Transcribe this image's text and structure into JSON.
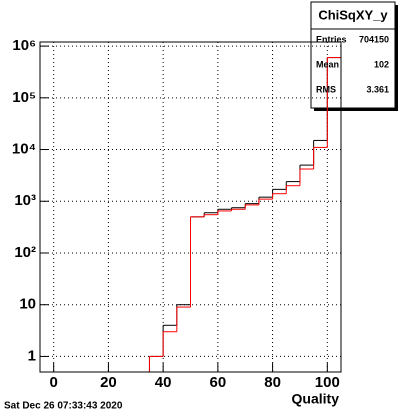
{
  "chart_data": {
    "type": "histogram",
    "x_label": "Quality",
    "footer": "Sat Dec 26 07:33:43 2020",
    "bins": [
      -5,
      0,
      5,
      10,
      15,
      20,
      25,
      30,
      35,
      40,
      45,
      50,
      55,
      60,
      65,
      70,
      75,
      80,
      85,
      90,
      95,
      100,
      105
    ],
    "series": [
      {
        "color": "#000000",
        "values": [
          0,
          0,
          0,
          0,
          0,
          0,
          0,
          0,
          1,
          4,
          10,
          500,
          600,
          700,
          750,
          900,
          1200,
          1700,
          2400,
          5000,
          15000,
          600000
        ]
      },
      {
        "color": "#ff0000",
        "values": [
          0,
          0,
          0,
          0,
          0,
          0,
          0,
          0,
          1,
          3,
          9,
          500,
          550,
          650,
          700,
          850,
          1100,
          1400,
          2000,
          4200,
          11000,
          600000
        ]
      }
    ],
    "xlim": [
      -5,
      105
    ],
    "xticks": [
      0,
      20,
      40,
      60,
      80,
      100
    ],
    "ylim": [
      0.5,
      1200000
    ],
    "log_y": true,
    "yticks": [
      1,
      10,
      {
        "value": 100,
        "label": "10²"
      },
      {
        "value": 1000,
        "label": "10³"
      },
      {
        "value": 10000,
        "label": "10⁴"
      },
      {
        "value": 100000,
        "label": "10⁵"
      },
      {
        "value": 1000000,
        "label": "10⁶"
      }
    ],
    "grid": true,
    "stats": {
      "title": "ChiSqXY_y",
      "rows": [
        [
          "Entries",
          704150
        ],
        [
          "Mean",
          102
        ],
        [
          "RMS",
          3.361
        ]
      ]
    }
  }
}
